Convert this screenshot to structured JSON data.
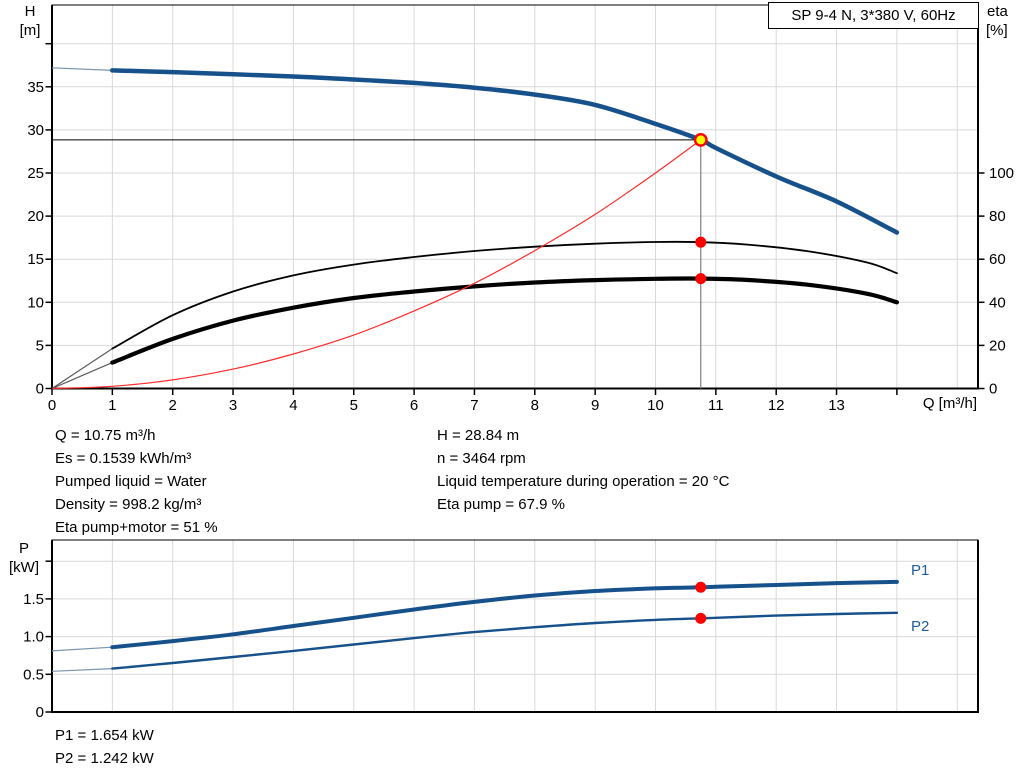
{
  "title_box": "SP 9-4 N, 3*380 V, 60Hz",
  "colors": {
    "curve_blue": "#17518b",
    "series_label_blue": "#1f5c9d",
    "marker_red": "#fe0000",
    "duty_yellow": "#ffff00",
    "system_curve_red": "#ff2a2a",
    "grid": "#d9d9d9",
    "axis": "#000000",
    "duty_vline_gray": "#808080",
    "thin_lead_gray": "#5a5a5a",
    "thin_lead_blue": "#7b93ad"
  },
  "info": {
    "left": [
      "Q = 10.75 m³/h",
      "Es = 0.1539 kWh/m³",
      "Pumped liquid = Water",
      "Density = 998.2 kg/m³",
      "Eta pump+motor = 51 %"
    ],
    "right": [
      "H = 28.84 m",
      "n = 3464 rpm",
      "Liquid temperature during operation = 20 °C",
      "Eta pump = 67.9 %"
    ],
    "power": [
      "P1 = 1.654 kW",
      "P2 = 1.242 kW"
    ]
  },
  "chart_data": {
    "top": {
      "type": "line",
      "title": "SP 9-4 N, 3*380 V, 60Hz",
      "grid": true,
      "x_axis": {
        "label": "Q [m³/h]",
        "min": 0,
        "max": 15.35,
        "ticks": [
          0,
          1,
          2,
          3,
          4,
          5,
          6,
          7,
          8,
          9,
          10,
          11,
          12,
          13,
          14
        ],
        "tick_labels": [
          "0",
          "1",
          "2",
          "3",
          "4",
          "5",
          "6",
          "7",
          "8",
          "9",
          "10",
          "11",
          "12",
          "13",
          ""
        ]
      },
      "y_left": {
        "label_lines": [
          "H",
          "[m]"
        ],
        "min": 0,
        "max": 44.5,
        "ticks": [
          0,
          5,
          10,
          15,
          20,
          25,
          30,
          35,
          40
        ],
        "tick_labels": [
          "0",
          "5",
          "10",
          "15",
          "20",
          "25",
          "30",
          "35",
          ""
        ]
      },
      "y_right": {
        "label_lines": [
          "eta",
          "[%]"
        ],
        "min": 0,
        "max": 178,
        "ticks": [
          0,
          20,
          40,
          60,
          80,
          100
        ],
        "tick_labels": [
          "0",
          "20",
          "40",
          "60",
          "80",
          "100"
        ]
      },
      "series": [
        {
          "name": "H-Q pump curve",
          "axis": "left",
          "color": "#17518b",
          "width": 4.5,
          "lead_color": "#7b93ad",
          "lead_in": [
            [
              0,
              37.2
            ],
            [
              1,
              36.9
            ]
          ],
          "points": [
            [
              1,
              36.9
            ],
            [
              2,
              36.7
            ],
            [
              3,
              36.45
            ],
            [
              4,
              36.2
            ],
            [
              5,
              35.85
            ],
            [
              6,
              35.45
            ],
            [
              7,
              34.9
            ],
            [
              8,
              34.1
            ],
            [
              9,
              32.9
            ],
            [
              10,
              30.7
            ],
            [
              10.75,
              28.84
            ],
            [
              11,
              27.9
            ],
            [
              12,
              24.6
            ],
            [
              13,
              21.7
            ],
            [
              14,
              18.1
            ]
          ]
        },
        {
          "name": "eta pump",
          "axis": "right",
          "color": "#000000",
          "width": 1.8,
          "lead_color": "#5a5a5a",
          "lead_in": [
            [
              0,
              0
            ],
            [
              1,
              18.5
            ]
          ],
          "points": [
            [
              1,
              18.5
            ],
            [
              2,
              34
            ],
            [
              3,
              45
            ],
            [
              4,
              52.5
            ],
            [
              5,
              57.5
            ],
            [
              6,
              61
            ],
            [
              7,
              63.8
            ],
            [
              8,
              65.8
            ],
            [
              9,
              67.2
            ],
            [
              10,
              68.0
            ],
            [
              10.75,
              67.9
            ],
            [
              11.5,
              66.8
            ],
            [
              12.5,
              63.8
            ],
            [
              13.5,
              58.5
            ],
            [
              14,
              53.5
            ]
          ]
        },
        {
          "name": "eta pump+motor",
          "axis": "right",
          "color": "#000000",
          "width": 4.2,
          "lead_color": "#5a5a5a",
          "lead_in": [
            [
              0,
              0
            ],
            [
              1,
              12
            ]
          ],
          "points": [
            [
              1,
              12
            ],
            [
              2,
              23
            ],
            [
              3,
              31.5
            ],
            [
              4,
              37.5
            ],
            [
              5,
              42
            ],
            [
              6,
              45
            ],
            [
              7,
              47.4
            ],
            [
              8,
              49.2
            ],
            [
              9,
              50.3
            ],
            [
              10,
              50.9
            ],
            [
              10.75,
              51
            ],
            [
              11.5,
              50.4
            ],
            [
              12.5,
              48.2
            ],
            [
              13.5,
              44
            ],
            [
              14,
              40
            ]
          ]
        },
        {
          "name": "system curve",
          "axis": "left",
          "color": "#ff2a2a",
          "width": 1.2,
          "points": [
            [
              0,
              0
            ],
            [
              1,
              0.25
            ],
            [
              2,
              1.0
            ],
            [
              3,
              2.25
            ],
            [
              4,
              4.0
            ],
            [
              5,
              6.2
            ],
            [
              6,
              9.0
            ],
            [
              7,
              12.2
            ],
            [
              8,
              16.0
            ],
            [
              9,
              20.2
            ],
            [
              10,
              25.0
            ],
            [
              10.75,
              28.84
            ]
          ]
        }
      ],
      "duty_point": {
        "Q": 10.75,
        "H": 28.84,
        "eta_pump": 67.9,
        "eta_pump_motor": 51
      }
    },
    "bottom": {
      "type": "line",
      "grid": true,
      "x_axis": {
        "min": 0,
        "max": 15.35,
        "ticks": [],
        "tick_labels": []
      },
      "y_left": {
        "label_lines": [
          "P",
          "[kW]"
        ],
        "min": 0,
        "max": 2.28,
        "ticks": [
          0,
          0.5,
          1.0,
          1.5,
          2.0
        ],
        "tick_labels": [
          "0",
          "0.5",
          "1.0",
          "1.5",
          ""
        ]
      },
      "series": [
        {
          "name": "P1",
          "axis": "P",
          "color": "#17518b",
          "width": 4,
          "lead_color": "#7b93ad",
          "lead_in": [
            [
              0,
              0.81
            ],
            [
              1,
              0.86
            ]
          ],
          "points": [
            [
              1,
              0.86
            ],
            [
              2,
              0.94
            ],
            [
              3,
              1.03
            ],
            [
              4,
              1.14
            ],
            [
              5,
              1.25
            ],
            [
              6,
              1.36
            ],
            [
              7,
              1.46
            ],
            [
              8,
              1.545
            ],
            [
              9,
              1.605
            ],
            [
              10,
              1.64
            ],
            [
              10.75,
              1.654
            ],
            [
              11,
              1.66
            ],
            [
              12,
              1.685
            ],
            [
              13,
              1.71
            ],
            [
              14,
              1.725
            ]
          ]
        },
        {
          "name": "P2",
          "axis": "P",
          "color": "#17518b",
          "width": 2.4,
          "lead_color": "#7b93ad",
          "lead_in": [
            [
              0,
              0.54
            ],
            [
              1,
              0.575
            ]
          ],
          "points": [
            [
              1,
              0.575
            ],
            [
              2,
              0.65
            ],
            [
              3,
              0.73
            ],
            [
              4,
              0.81
            ],
            [
              5,
              0.895
            ],
            [
              6,
              0.98
            ],
            [
              7,
              1.06
            ],
            [
              8,
              1.125
            ],
            [
              9,
              1.18
            ],
            [
              10,
              1.222
            ],
            [
              10.75,
              1.242
            ],
            [
              11,
              1.25
            ],
            [
              12,
              1.278
            ],
            [
              13,
              1.3
            ],
            [
              14,
              1.315
            ]
          ]
        }
      ],
      "duty_point": {
        "Q": 10.75,
        "P1": 1.654,
        "P2": 1.242
      }
    }
  }
}
